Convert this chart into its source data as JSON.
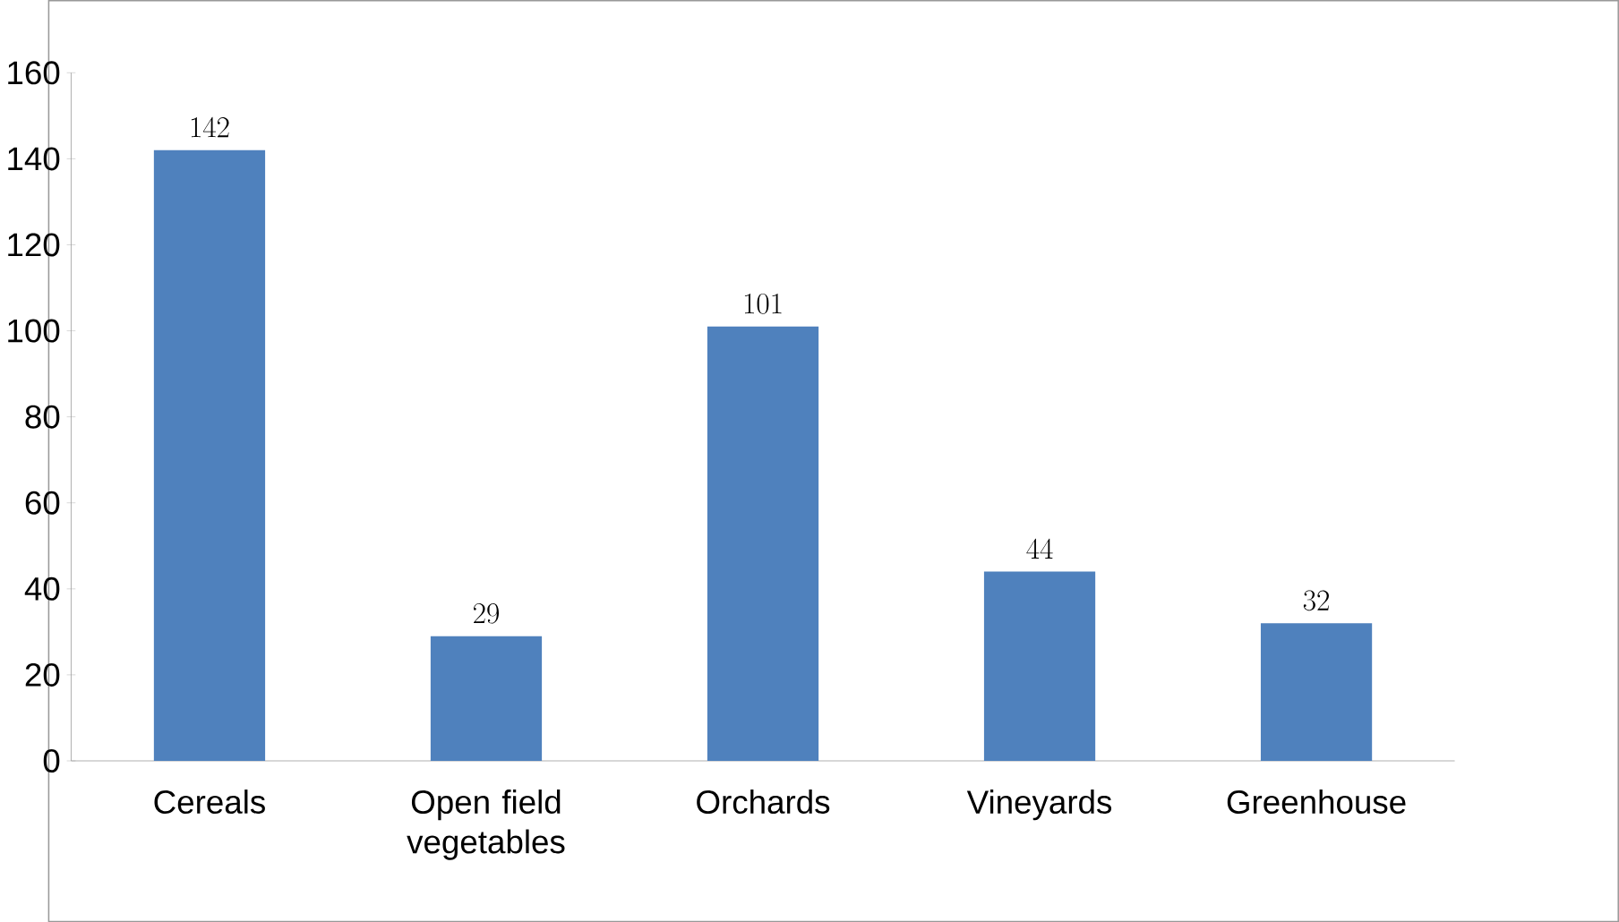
{
  "chart_data": {
    "type": "bar",
    "categories": [
      "Cereals",
      "Open field vegetables",
      "Orchards",
      "Vineyards",
      "Greenhouse"
    ],
    "values": [
      142,
      29,
      101,
      44,
      32
    ],
    "color": "#4f81bd",
    "ylim": [
      0,
      160
    ],
    "yticks": [
      0,
      20,
      40,
      60,
      80,
      100,
      120,
      140,
      160
    ],
    "data_labels": true
  }
}
